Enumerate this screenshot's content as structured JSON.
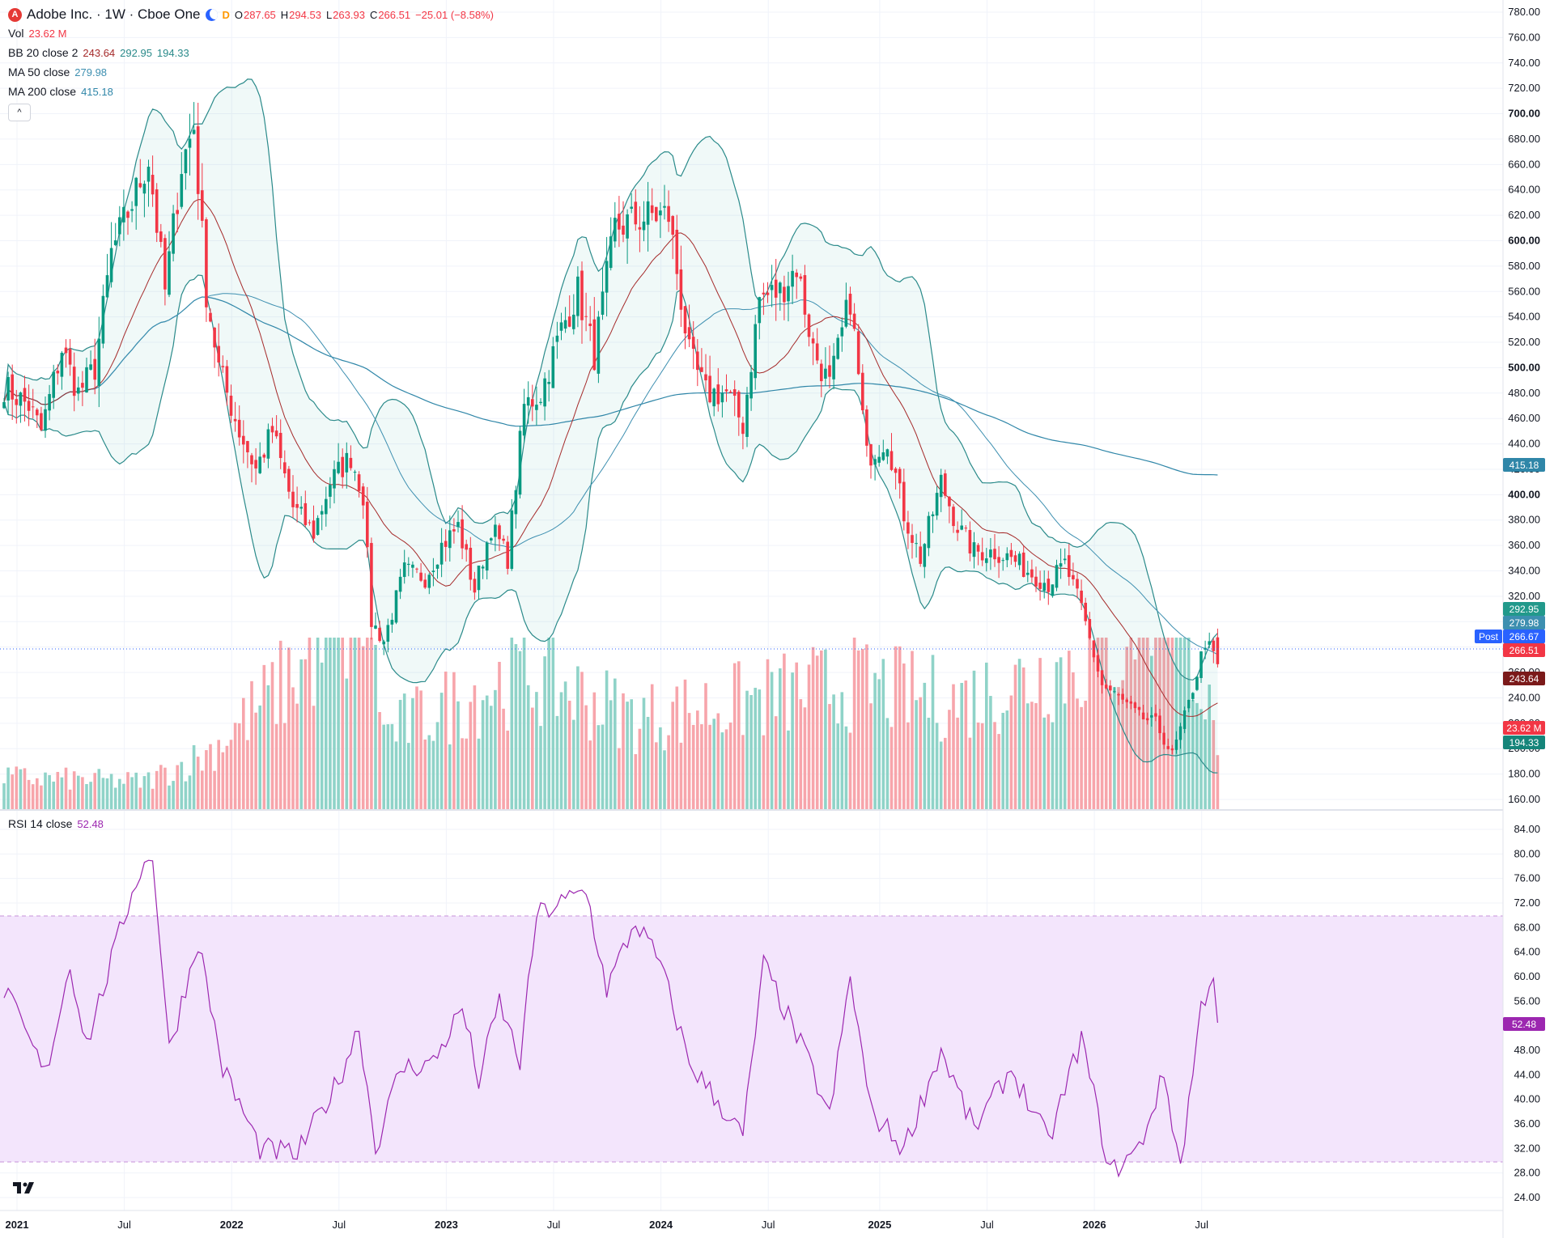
{
  "header": {
    "title": "Adobe Inc. · 1W · Cboe One",
    "logo_letter": "A",
    "d_badge": "D",
    "o_label": "O",
    "o_value": "287.65",
    "h_label": "H",
    "h_value": "294.53",
    "l_label": "L",
    "l_value": "263.93",
    "c_label": "C",
    "c_value": "266.51",
    "change": "−25.01 (−8.58%)"
  },
  "indicators": {
    "vol_label": "Vol",
    "vol_value": "23.62 M",
    "bb_label": "BB 20 close 2",
    "bb_mid": "243.64",
    "bb_upper": "292.95",
    "bb_lower": "194.33",
    "ma50_label": "MA 50 close",
    "ma50_value": "279.98",
    "ma200_label": "MA 200 close",
    "ma200_value": "415.18",
    "rsi_label": "RSI 14 close",
    "rsi_value": "52.48",
    "collapse_icon": "^"
  },
  "price_axis_labels": [
    "780.00",
    "760.00",
    "740.00",
    "720.00",
    "700.00",
    "680.00",
    "660.00",
    "640.00",
    "620.00",
    "600.00",
    "580.00",
    "560.00",
    "540.00",
    "520.00",
    "500.00",
    "480.00",
    "460.00",
    "440.00",
    "420.00",
    "400.00",
    "380.00",
    "360.00",
    "340.00",
    "320.00",
    "300.00",
    "280.00",
    "260.00",
    "240.00",
    "220.00",
    "200.00",
    "180.00",
    "160.00"
  ],
  "rsi_axis_labels": [
    "84.00",
    "80.00",
    "76.00",
    "72.00",
    "68.00",
    "64.00",
    "60.00",
    "56.00",
    "52.00",
    "48.00",
    "44.00",
    "40.00",
    "36.00",
    "32.00",
    "28.00",
    "24.00"
  ],
  "time_axis_labels": [
    "2021",
    "Jul",
    "2022",
    "Jul",
    "2023",
    "Jul",
    "2024",
    "Jul",
    "2025",
    "Jul",
    "2026",
    "Jul"
  ],
  "price_tags": {
    "bb_upper": "292.95",
    "ma50": "279.98",
    "post_label": "Post",
    "post": "266.67",
    "close": "266.51",
    "bb_mid": "243.64",
    "vol": "23.62 M",
    "bb_lower": "194.33",
    "ma200": "415.18",
    "rsi": "52.48"
  },
  "colors": {
    "up": "#089981",
    "down": "#f23645",
    "bb": "#2a8a8a",
    "bb_mid": "#a52a2a",
    "ma50": "#3d8fb0",
    "ma200": "#2f86a8",
    "rsi": "#9c27b0",
    "rsi_band": "#f3e5fc",
    "vol_up": "#8fd3c8",
    "vol_down": "#f7a5ab",
    "post": "#2962ff"
  },
  "chart_data": {
    "type": "candlestick",
    "timeframe": "1W",
    "x_start": "2021-01-04",
    "price_ylim": [
      150,
      790
    ],
    "rsi_ylim": [
      22,
      86
    ],
    "rsi_band": [
      30,
      70
    ],
    "anchors_close": [
      [
        "2021-01-04",
        485
      ],
      [
        "2021-02-15",
        470
      ],
      [
        "2021-03-08",
        450
      ],
      [
        "2021-04-12",
        515
      ],
      [
        "2021-05-10",
        480
      ],
      [
        "2021-06-07",
        500
      ],
      [
        "2021-07-05",
        590
      ],
      [
        "2021-08-09",
        630
      ],
      [
        "2021-09-06",
        665
      ],
      [
        "2021-10-04",
        560
      ],
      [
        "2021-11-01",
        660
      ],
      [
        "2021-11-22",
        690
      ],
      [
        "2021-12-13",
        560
      ],
      [
        "2022-01-03",
        500
      ],
      [
        "2022-02-07",
        450
      ],
      [
        "2022-03-07",
        420
      ],
      [
        "2022-04-04",
        450
      ],
      [
        "2022-05-09",
        390
      ],
      [
        "2022-06-13",
        370
      ],
      [
        "2022-07-11",
        410
      ],
      [
        "2022-08-15",
        430
      ],
      [
        "2022-09-05",
        400
      ],
      [
        "2022-09-19",
        300
      ],
      [
        "2022-10-10",
        285
      ],
      [
        "2022-11-14",
        340
      ],
      [
        "2022-12-19",
        335
      ],
      [
        "2023-01-16",
        360
      ],
      [
        "2023-02-13",
        375
      ],
      [
        "2023-03-13",
        325
      ],
      [
        "2023-04-10",
        375
      ],
      [
        "2023-05-08",
        350
      ],
      [
        "2023-06-05",
        470
      ],
      [
        "2023-07-03",
        480
      ],
      [
        "2023-08-07",
        530
      ],
      [
        "2023-09-04",
        560
      ],
      [
        "2023-10-02",
        510
      ],
      [
        "2023-11-06",
        610
      ],
      [
        "2023-12-04",
        615
      ],
      [
        "2024-01-08",
        620
      ],
      [
        "2024-02-05",
        620
      ],
      [
        "2024-03-11",
        510
      ],
      [
        "2024-04-08",
        480
      ],
      [
        "2024-05-13",
        480
      ],
      [
        "2024-06-10",
        455
      ],
      [
        "2024-07-08",
        555
      ],
      [
        "2024-08-12",
        560
      ],
      [
        "2024-09-09",
        580
      ],
      [
        "2024-10-07",
        515
      ],
      [
        "2024-11-04",
        485
      ],
      [
        "2024-12-09",
        555
      ],
      [
        "2025-01-06",
        430
      ],
      [
        "2025-02-10",
        445
      ],
      [
        "2025-03-10",
        385
      ],
      [
        "2025-04-07",
        350
      ],
      [
        "2025-05-12",
        410
      ],
      [
        "2025-06-09",
        375
      ],
      [
        "2025-07-07",
        355
      ],
      [
        "2025-08-11",
        355
      ],
      [
        "2025-09-08",
        350
      ],
      [
        "2025-10-06",
        340
      ],
      [
        "2025-11-10",
        330
      ],
      [
        "2025-12-08",
        345
      ],
      [
        "2026-01-05",
        310
      ],
      [
        "2026-02-09",
        250
      ],
      [
        "2026-03-09",
        240
      ],
      [
        "2026-04-13",
        225
      ],
      [
        "2026-05-11",
        220
      ],
      [
        "2026-06-08",
        195
      ],
      [
        "2026-07-06",
        235
      ],
      [
        "2026-08-03",
        285
      ],
      [
        "2026-08-24",
        266.51
      ]
    ],
    "anchors_volume_millions": [
      [
        "2021-01-04",
        14
      ],
      [
        "2021-09-01",
        12
      ],
      [
        "2021-12-13",
        24
      ],
      [
        "2022-09-19",
        90
      ],
      [
        "2022-10-10",
        33
      ],
      [
        "2023-06-05",
        60
      ],
      [
        "2023-12-11",
        40
      ],
      [
        "2024-06-10",
        47
      ],
      [
        "2024-12-09",
        55
      ],
      [
        "2025-06-09",
        47
      ],
      [
        "2026-03-09",
        70
      ],
      [
        "2026-06-08",
        120
      ],
      [
        "2026-08-24",
        23.62
      ]
    ],
    "anchors_rsi": [
      [
        "2021-01-04",
        58
      ],
      [
        "2021-03-15",
        44
      ],
      [
        "2021-04-26",
        62
      ],
      [
        "2021-05-24",
        49
      ],
      [
        "2021-08-16",
        76
      ],
      [
        "2021-09-13",
        80
      ],
      [
        "2021-10-11",
        48
      ],
      [
        "2021-11-29",
        66
      ],
      [
        "2022-01-10",
        45
      ],
      [
        "2022-03-14",
        32
      ],
      [
        "2022-05-16",
        31
      ],
      [
        "2022-07-25",
        43
      ],
      [
        "2022-08-29",
        52
      ],
      [
        "2022-09-26",
        32
      ],
      [
        "2022-11-07",
        45
      ],
      [
        "2023-01-02",
        46
      ],
      [
        "2023-02-20",
        55
      ],
      [
        "2023-03-20",
        43
      ],
      [
        "2023-04-24",
        56
      ],
      [
        "2023-05-29",
        46
      ],
      [
        "2023-06-26",
        70
      ],
      [
        "2023-09-18",
        74
      ],
      [
        "2023-10-23",
        58
      ],
      [
        "2023-12-11",
        69
      ],
      [
        "2024-01-22",
        62
      ],
      [
        "2024-03-11",
        46
      ],
      [
        "2024-06-10",
        34
      ],
      [
        "2024-07-15",
        62
      ],
      [
        "2024-09-30",
        46
      ],
      [
        "2024-11-04",
        37
      ],
      [
        "2024-12-09",
        60
      ],
      [
        "2025-01-13",
        38
      ],
      [
        "2025-03-10",
        32
      ],
      [
        "2025-05-12",
        48
      ],
      [
        "2025-07-07",
        35
      ],
      [
        "2025-09-08",
        45
      ],
      [
        "2025-11-10",
        33
      ],
      [
        "2026-01-05",
        50
      ],
      [
        "2026-02-23",
        28
      ],
      [
        "2026-04-13",
        32
      ],
      [
        "2026-05-25",
        44
      ],
      [
        "2026-06-22",
        29
      ],
      [
        "2026-07-27",
        55
      ],
      [
        "2026-08-17",
        61
      ],
      [
        "2026-08-24",
        52.48
      ]
    ],
    "bb_period": 20,
    "bb_stddev": 2,
    "ma_fast": 50,
    "ma_slow": 200,
    "last": {
      "open": 287.65,
      "high": 294.53,
      "low": 263.93,
      "close": 266.51
    }
  }
}
